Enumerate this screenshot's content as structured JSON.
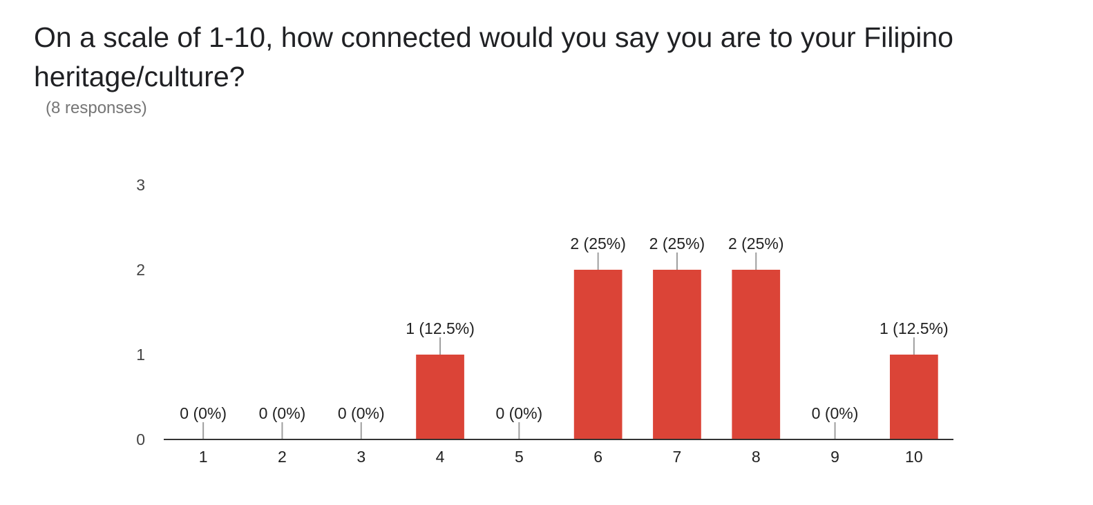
{
  "question": {
    "title": "On a scale of 1-10, how connected would you say you are to your Filipino heritage/culture?",
    "responses": "(8 responses)"
  },
  "chart_data": {
    "type": "bar",
    "categories": [
      "1",
      "2",
      "3",
      "4",
      "5",
      "6",
      "7",
      "8",
      "9",
      "10"
    ],
    "values": [
      0,
      0,
      0,
      1,
      0,
      2,
      2,
      2,
      0,
      1
    ],
    "data_labels": [
      "0 (0%)",
      "0 (0%)",
      "0 (0%)",
      "1 (12.5%)",
      "0 (0%)",
      "2 (25%)",
      "2 (25%)",
      "2 (25%)",
      "0 (0%)",
      "1 (12.5%)"
    ],
    "ylim": [
      0,
      3
    ],
    "yticks": [
      0,
      1,
      2,
      3
    ],
    "grid": false,
    "colors": {
      "bar": "#db4437",
      "axis": "#333333",
      "leader": "#9e9e9e",
      "label": "#212121"
    }
  }
}
